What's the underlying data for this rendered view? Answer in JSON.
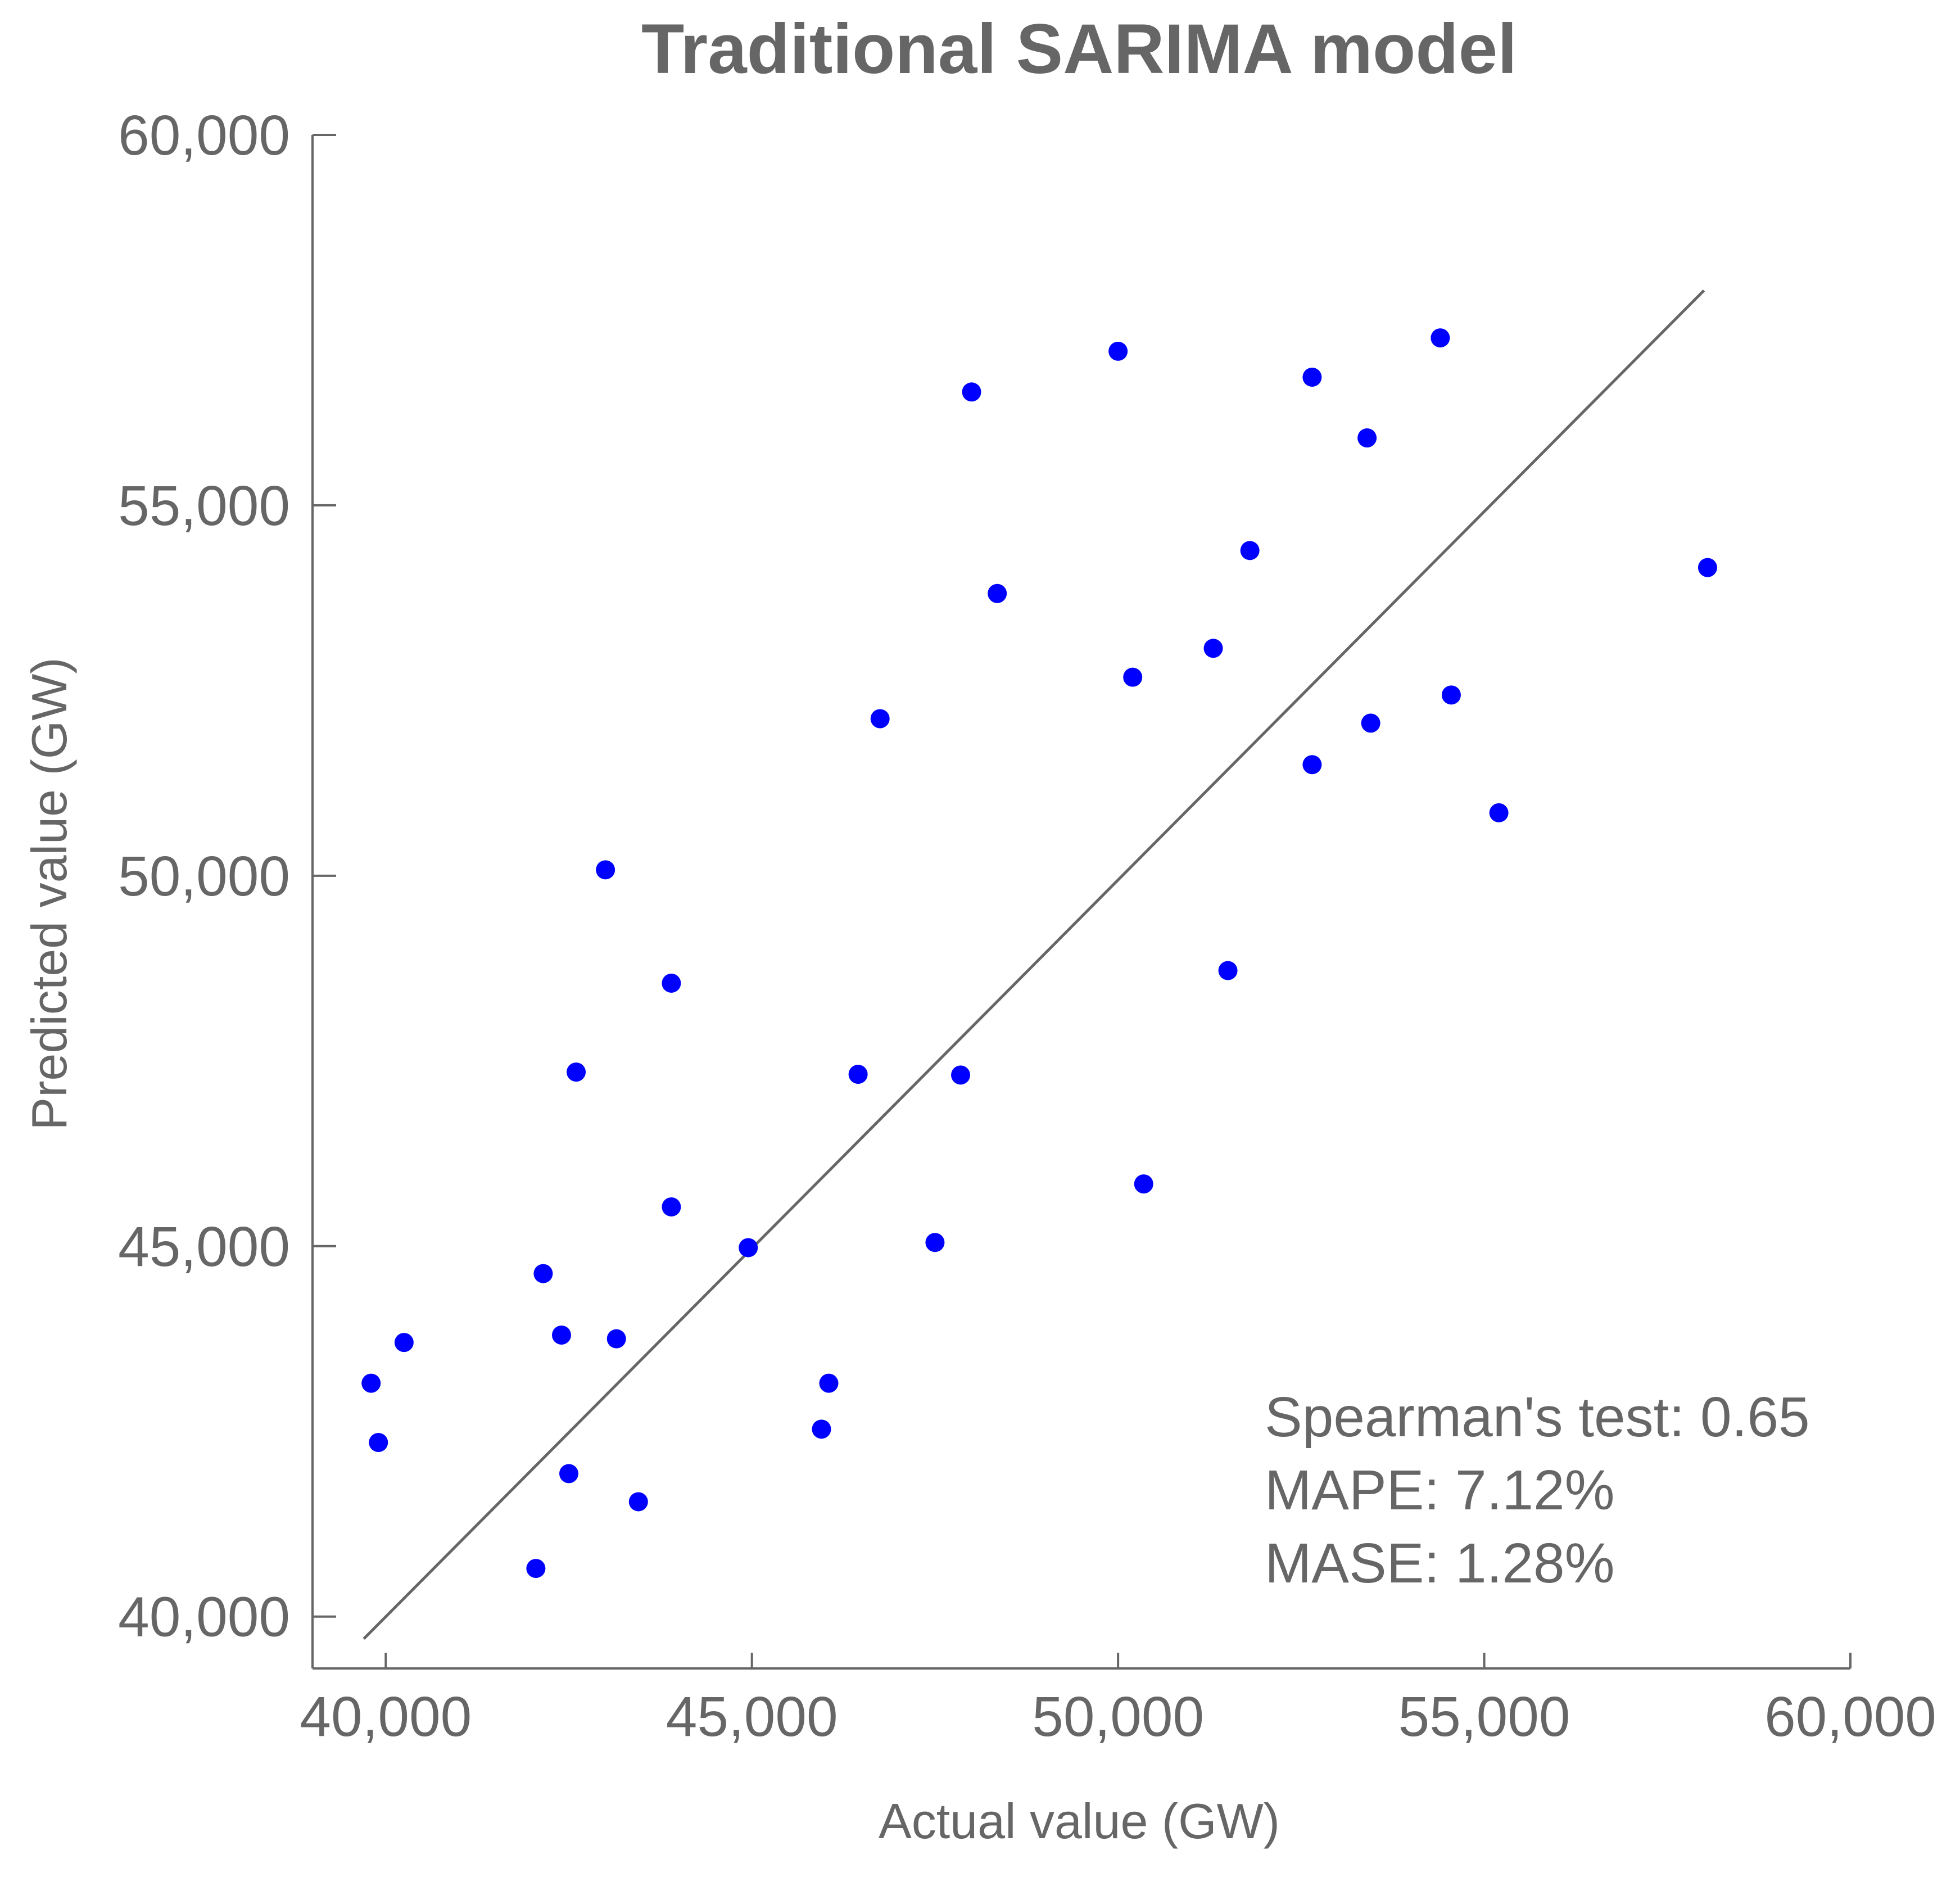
{
  "chart_data": {
    "type": "scatter",
    "title": "Traditional SARIMA model",
    "xlabel": "Actual value (GW)",
    "ylabel": "Predicted value (GW)",
    "xlim": [
      39000,
      60000
    ],
    "ylim": [
      39300,
      60000
    ],
    "x_ticks": [
      40000,
      45000,
      50000,
      55000,
      60000
    ],
    "y_ticks": [
      40000,
      45000,
      50000,
      55000,
      60000
    ],
    "x_tick_labels": [
      "40,000",
      "45,000",
      "50,000",
      "55,000",
      "60,000"
    ],
    "y_tick_labels": [
      "40,000",
      "45,000",
      "50,000",
      "55,000",
      "60,000"
    ],
    "grid": false,
    "point_color": "#0000ff",
    "axis_color": "#666666",
    "reference_line": {
      "x": [
        39700,
        58000
      ],
      "y": [
        39700,
        57900
      ]
    },
    "points": [
      {
        "x": 39800,
        "y": 43150
      },
      {
        "x": 39900,
        "y": 42350
      },
      {
        "x": 40250,
        "y": 43700
      },
      {
        "x": 42050,
        "y": 40650
      },
      {
        "x": 42150,
        "y": 44630
      },
      {
        "x": 42400,
        "y": 43800
      },
      {
        "x": 42500,
        "y": 41930
      },
      {
        "x": 42600,
        "y": 47350
      },
      {
        "x": 43000,
        "y": 50080
      },
      {
        "x": 43150,
        "y": 43750
      },
      {
        "x": 43450,
        "y": 41550
      },
      {
        "x": 43900,
        "y": 48550
      },
      {
        "x": 43900,
        "y": 45530
      },
      {
        "x": 44950,
        "y": 44980
      },
      {
        "x": 45950,
        "y": 42530
      },
      {
        "x": 46050,
        "y": 43150
      },
      {
        "x": 46450,
        "y": 47320
      },
      {
        "x": 46750,
        "y": 52120
      },
      {
        "x": 47500,
        "y": 45050
      },
      {
        "x": 47850,
        "y": 47310
      },
      {
        "x": 48000,
        "y": 56530
      },
      {
        "x": 48350,
        "y": 53810
      },
      {
        "x": 50000,
        "y": 57080
      },
      {
        "x": 50200,
        "y": 52680
      },
      {
        "x": 50350,
        "y": 45840
      },
      {
        "x": 51300,
        "y": 53070
      },
      {
        "x": 51500,
        "y": 48720
      },
      {
        "x": 51800,
        "y": 54390
      },
      {
        "x": 52650,
        "y": 56730
      },
      {
        "x": 52650,
        "y": 51500
      },
      {
        "x": 53400,
        "y": 55910
      },
      {
        "x": 53450,
        "y": 52060
      },
      {
        "x": 54400,
        "y": 57260
      },
      {
        "x": 54550,
        "y": 52440
      },
      {
        "x": 55200,
        "y": 50850
      },
      {
        "x": 58050,
        "y": 54160
      }
    ]
  },
  "annotations": {
    "spearman": "Spearman's test: 0.65",
    "mape": "MAPE: 7.12%",
    "mase": "MASE: 1.28%"
  }
}
